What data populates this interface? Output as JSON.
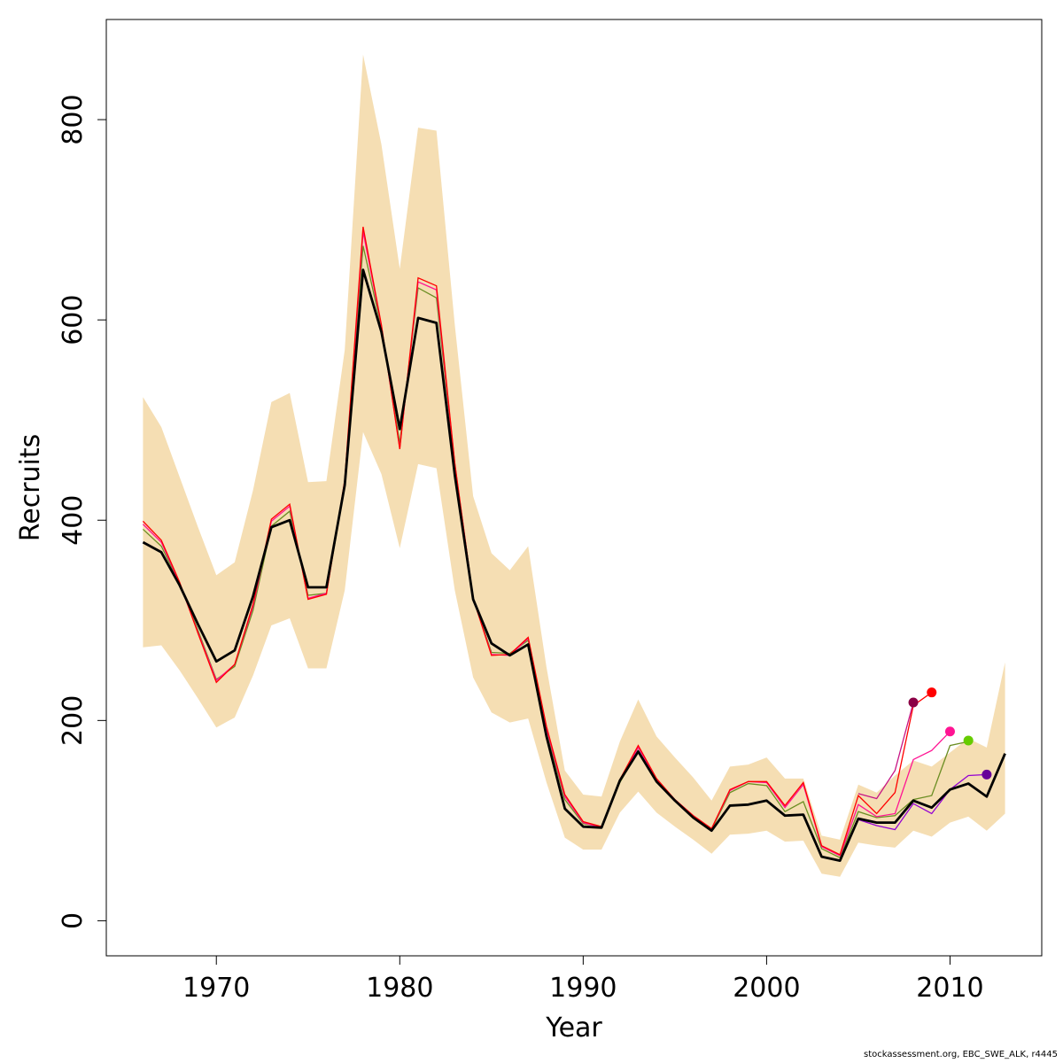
{
  "chart_data": {
    "type": "line",
    "xlabel": "Year",
    "ylabel": "Recruits",
    "xlim": [
      1964,
      2015
    ],
    "ylim": [
      -35,
      900
    ],
    "x_ticks": [
      1970,
      1980,
      1990,
      2000,
      2010
    ],
    "y_ticks": [
      0,
      200,
      400,
      600,
      800
    ],
    "grid": false,
    "legend": "none",
    "band_color": "#F5DEB3",
    "band": {
      "x": [
        1966,
        1967,
        1968,
        1969,
        1970,
        1971,
        1972,
        1973,
        1974,
        1975,
        1976,
        1977,
        1978,
        1979,
        1980,
        1981,
        1982,
        1983,
        1984,
        1985,
        1986,
        1987,
        1988,
        1989,
        1990,
        1991,
        1992,
        1993,
        1994,
        1995,
        1996,
        1997,
        1998,
        1999,
        2000,
        2001,
        2002,
        2003,
        2004,
        2005,
        2006,
        2007,
        2008,
        2009,
        2010,
        2011,
        2012,
        2013
      ],
      "lower": [
        273,
        275,
        250,
        222,
        193,
        203,
        245,
        295,
        302,
        252,
        252,
        330,
        488,
        446,
        372,
        456,
        452,
        330,
        243,
        208,
        198,
        202,
        138,
        83,
        71,
        71,
        108,
        129,
        108,
        94,
        81,
        67,
        86,
        87,
        90,
        79,
        80,
        47,
        44,
        78,
        75,
        73,
        90,
        84,
        98,
        104,
        90,
        107
      ],
      "upper": [
        523,
        493,
        443,
        393,
        345,
        358,
        430,
        518,
        527,
        438,
        439,
        570,
        865,
        775,
        651,
        792,
        789,
        595,
        424,
        367,
        350,
        374,
        253,
        150,
        126,
        124,
        179,
        221,
        184,
        163,
        143,
        120,
        154,
        156,
        163,
        142,
        142,
        85,
        81,
        136,
        128,
        145,
        160,
        154,
        168,
        182,
        173,
        258
      ]
    },
    "main_series": {
      "name": "",
      "color": "#000000",
      "x": [
        1966,
        1967,
        1968,
        1969,
        1970,
        1971,
        1972,
        1973,
        1974,
        1975,
        1976,
        1977,
        1978,
        1979,
        1980,
        1981,
        1982,
        1983,
        1984,
        1985,
        1986,
        1987,
        1988,
        1989,
        1990,
        1991,
        1992,
        1993,
        1994,
        1995,
        1996,
        1997,
        1998,
        1999,
        2000,
        2001,
        2002,
        2003,
        2004,
        2005,
        2006,
        2007,
        2008,
        2009,
        2010,
        2011,
        2012,
        2013
      ],
      "values": [
        378,
        368,
        335,
        296,
        259,
        270,
        324,
        393,
        400,
        333,
        333,
        435,
        650,
        588,
        491,
        602,
        597,
        445,
        321,
        277,
        265,
        276,
        184,
        112,
        94,
        93,
        140,
        169,
        139,
        120,
        103,
        90,
        115,
        116,
        120,
        105,
        106,
        64,
        60,
        102,
        98,
        98,
        120,
        113,
        131,
        137,
        124,
        167
      ]
    },
    "retro_series": [
      {
        "name": "",
        "color": "#6B8E23",
        "x": [
          1966,
          1967,
          1968,
          1969,
          1970,
          1971,
          1972,
          1973,
          1974,
          1975,
          1976,
          1977,
          1978,
          1979,
          1980,
          1981,
          1982,
          1983,
          1984,
          1985,
          1986,
          1987,
          1988,
          1989,
          1990,
          1991,
          1992,
          1993,
          1994,
          1995,
          1996,
          1997,
          1998,
          1999,
          2000,
          2001,
          2002,
          2003,
          2004,
          2005,
          2006,
          2007,
          2008,
          2009,
          2010,
          2011
        ],
        "values": [
          391,
          374,
          337,
          290,
          241,
          254,
          310,
          394,
          409,
          325,
          327,
          435,
          674,
          592,
          477,
          632,
          622,
          455,
          322,
          268,
          267,
          280,
          190,
          121,
          97,
          94,
          138,
          170,
          139,
          120,
          104,
          91,
          128,
          137,
          135,
          109,
          119,
          72,
          63,
          109,
          103,
          105,
          121,
          125,
          175,
          179
        ],
        "end_marker": {
          "x": 2011,
          "y": 180,
          "color": "#66CC00"
        }
      },
      {
        "name": "",
        "color": "#9400D3",
        "x": [
          2005,
          2006,
          2007,
          2008,
          2009,
          2010,
          2011,
          2012
        ],
        "values": [
          101,
          95,
          91,
          117,
          107,
          131,
          145,
          146
        ],
        "end_marker": {
          "x": 2012,
          "y": 146,
          "color": "#660099"
        }
      },
      {
        "name": "",
        "color": "#FF1493",
        "x": [
          1966,
          1967,
          1968,
          1969,
          1970,
          1971,
          1972,
          1973,
          1974,
          1975,
          1976,
          1977,
          1978,
          1979,
          1980,
          1981,
          1982,
          1983,
          1984,
          1985,
          1986,
          1987,
          1988,
          1989,
          1990,
          1991,
          1992,
          1993,
          1994,
          1995,
          1996,
          1997,
          1998,
          1999,
          2000,
          2001,
          2002,
          2003,
          2004,
          2005,
          2006,
          2007,
          2008,
          2009,
          2010
        ],
        "values": [
          396,
          378,
          337,
          288,
          240,
          256,
          314,
          399,
          414,
          322,
          327,
          438,
          688,
          594,
          472,
          638,
          630,
          456,
          322,
          266,
          265,
          282,
          192,
          124,
          98,
          93,
          140,
          173,
          141,
          121,
          105,
          92,
          130,
          139,
          138,
          113,
          136,
          74,
          65,
          116,
          104,
          107,
          161,
          170,
          189
        ],
        "end_marker": {
          "x": 2010,
          "y": 189,
          "color": "#FF1493"
        }
      },
      {
        "name": "",
        "color": "#FF0000",
        "x": [
          1966,
          1967,
          1968,
          1969,
          1970,
          1971,
          1972,
          1973,
          1974,
          1975,
          1976,
          1977,
          1978,
          1979,
          1980,
          1981,
          1982,
          1983,
          1984,
          1985,
          1986,
          1987,
          1988,
          1989,
          1990,
          1991,
          1992,
          1993,
          1994,
          1995,
          1996,
          1997,
          1998,
          1999,
          2000,
          2001,
          2002,
          2003,
          2004,
          2005,
          2006,
          2007,
          2008,
          2009
        ],
        "values": [
          399,
          380,
          338,
          287,
          238,
          256,
          316,
          401,
          416,
          321,
          326,
          440,
          693,
          595,
          471,
          642,
          634,
          457,
          322,
          265,
          266,
          283,
          194,
          126,
          99,
          94,
          141,
          175,
          142,
          121,
          105,
          92,
          131,
          139,
          139,
          115,
          138,
          75,
          66,
          125,
          107,
          128,
          215,
          228
        ],
        "end_marker": {
          "x": 2009,
          "y": 228,
          "color": "#FF0000"
        }
      },
      {
        "name": "",
        "color": "#C71585",
        "x": [
          2005,
          2006,
          2007,
          2008
        ],
        "values": [
          127,
          122,
          150,
          218
        ],
        "end_marker": {
          "x": 2008,
          "y": 218,
          "color": "#8B0045"
        }
      }
    ]
  },
  "footer": "stockassessment.org, EBC_SWE_ALK, r4445"
}
